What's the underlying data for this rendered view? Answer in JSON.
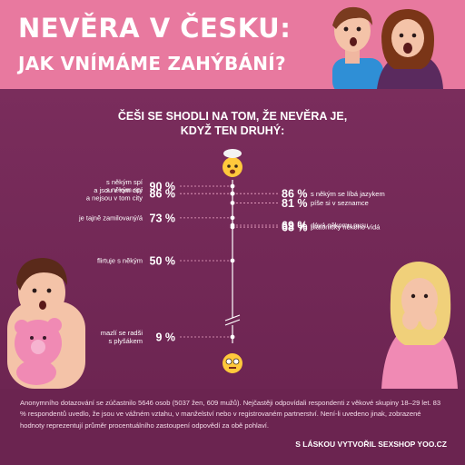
{
  "header": {
    "title_line1": "NEVĚRA V ČESKU:",
    "title_line2": "JAK VNÍMÁME ZAHÝBÁNÍ?"
  },
  "subtitle": {
    "line1": "ČEŠI SE SHODLI NA TOM, ŽE NEVĚRA JE,",
    "line2": "KDYŽ TEN DRUHÝ:"
  },
  "colors": {
    "header_bg": "#e8799f",
    "panel_bg": "#6b2450",
    "accent_pink": "#f6a6c5",
    "text_white": "#ffffff"
  },
  "chart_data": {
    "type": "bar",
    "xlim": [
      0,
      100
    ],
    "left": {
      "categories": [
        "s někým spí\na jsou v tom city",
        "s někým spí\na nejsou v tom city",
        "je tajně zamilovaný/á",
        "flirtuje s někým",
        "mazlí se radši\ns plyšákem"
      ],
      "values": [
        90,
        86,
        73,
        50,
        9
      ],
      "value_labels": [
        "90 %",
        "86 %",
        "73 %",
        "50 %",
        "9 %"
      ]
    },
    "right": {
      "categories": [
        "s někým se líbá jazykem",
        "píše si v seznamce",
        "dává někomu pusu",
        "platonicky někoho vídá"
      ],
      "values": [
        86,
        81,
        69,
        68
      ],
      "value_labels": [
        "86 %",
        "81 %",
        "69 %",
        "68 %"
      ]
    },
    "emoji_top": "exploding-head-emoji",
    "emoji_bottom": "flushed-face-emoji"
  },
  "footer": {
    "note": "Anonymního dotazování se zúčastnilo 5646 osob (5037 žen, 609 mužů). Nejčastěji odpovídali respondenti z věkové skupiny 18–29 let. 83 % respondentů uvedlo, že jsou ve vážném vztahu, v manželství nebo v registrovaném partnerství. Není-li uvedeno jinak, zobrazené hodnoty reprezentují průměr procentuálního zastoupení odpovědí za obě pohlaví.",
    "credit": "S LÁSKOU VYTVOŘIL SEXSHOP YOO.CZ"
  }
}
